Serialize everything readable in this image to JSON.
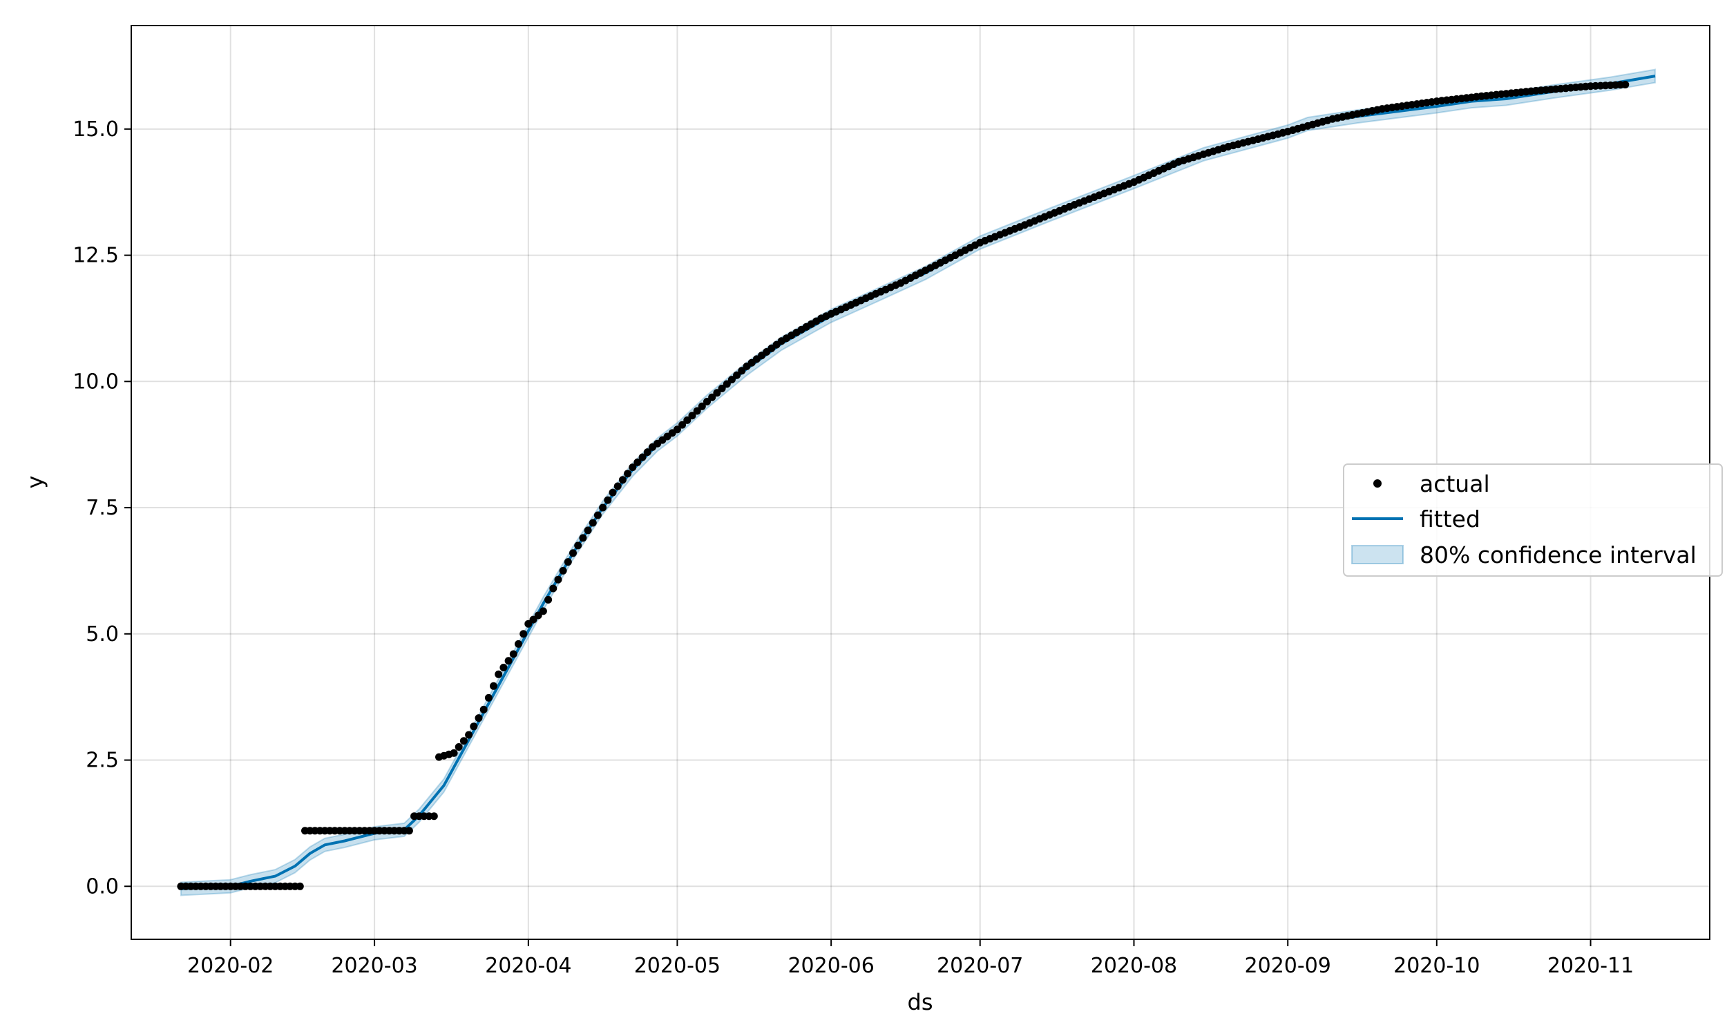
{
  "chart_data": {
    "type": "line",
    "xlabel": "ds",
    "ylabel": "y",
    "xlim": [
      "2020-01-12",
      "2020-11-25"
    ],
    "ylim": [
      -1.05,
      17.05
    ],
    "grid": true,
    "x_ticks": [
      "2020-02",
      "2020-03",
      "2020-04",
      "2020-05",
      "2020-06",
      "2020-07",
      "2020-08",
      "2020-09",
      "2020-10",
      "2020-11"
    ],
    "y_ticks": [
      "0.0",
      "2.5",
      "5.0",
      "7.5",
      "10.0",
      "12.5",
      "15.0"
    ],
    "legend": {
      "position": "center-right",
      "items": [
        "actual",
        "fitted",
        "80% confidence interval"
      ]
    },
    "colors": {
      "actual": "#000000",
      "fitted": "#0072B2",
      "band": "#0072B2"
    },
    "series": [
      {
        "name": "actual",
        "kind": "points",
        "points": [
          [
            "2020-01-22",
            0.0
          ],
          [
            "2020-02-15",
            0.0
          ],
          [
            "2020-02-16",
            1.1
          ],
          [
            "2020-03-08",
            1.1
          ],
          [
            "2020-03-09",
            1.39
          ],
          [
            "2020-03-13",
            1.39
          ],
          [
            "2020-03-14",
            2.56
          ],
          [
            "2020-03-17",
            2.64
          ],
          [
            "2020-03-20",
            3.0
          ],
          [
            "2020-03-23",
            3.5
          ],
          [
            "2020-03-26",
            4.2
          ],
          [
            "2020-03-29",
            4.6
          ],
          [
            "2020-04-01",
            5.2
          ],
          [
            "2020-04-04",
            5.45
          ],
          [
            "2020-04-06",
            5.9
          ],
          [
            "2020-04-10",
            6.6
          ],
          [
            "2020-04-14",
            7.2
          ],
          [
            "2020-04-18",
            7.8
          ],
          [
            "2020-04-22",
            8.3
          ],
          [
            "2020-04-26",
            8.7
          ],
          [
            "2020-05-01",
            9.05
          ],
          [
            "2020-05-07",
            9.6
          ],
          [
            "2020-05-15",
            10.3
          ],
          [
            "2020-05-22",
            10.8
          ],
          [
            "2020-05-30",
            11.25
          ],
          [
            "2020-06-08",
            11.65
          ],
          [
            "2020-06-15",
            11.95
          ],
          [
            "2020-06-22",
            12.3
          ],
          [
            "2020-07-01",
            12.75
          ],
          [
            "2020-07-10",
            13.1
          ],
          [
            "2020-07-20",
            13.5
          ],
          [
            "2020-08-01",
            13.95
          ],
          [
            "2020-08-10",
            14.35
          ],
          [
            "2020-08-20",
            14.65
          ],
          [
            "2020-09-01",
            14.95
          ],
          [
            "2020-09-10",
            15.2
          ],
          [
            "2020-09-20",
            15.4
          ],
          [
            "2020-10-01",
            15.55
          ],
          [
            "2020-10-10",
            15.65
          ],
          [
            "2020-10-20",
            15.75
          ],
          [
            "2020-11-01",
            15.85
          ],
          [
            "2020-11-08",
            15.88
          ]
        ]
      },
      {
        "name": "fitted",
        "kind": "line",
        "points": [
          [
            "2020-01-22",
            -0.05
          ],
          [
            "2020-02-01",
            0.0
          ],
          [
            "2020-02-05",
            0.1
          ],
          [
            "2020-02-10",
            0.2
          ],
          [
            "2020-02-14",
            0.4
          ],
          [
            "2020-02-17",
            0.65
          ],
          [
            "2020-02-20",
            0.82
          ],
          [
            "2020-02-24",
            0.9
          ],
          [
            "2020-03-01",
            1.05
          ],
          [
            "2020-03-07",
            1.12
          ],
          [
            "2020-03-10",
            1.4
          ],
          [
            "2020-03-15",
            2.0
          ],
          [
            "2020-03-20",
            2.9
          ],
          [
            "2020-03-25",
            3.8
          ],
          [
            "2020-03-30",
            4.7
          ],
          [
            "2020-04-04",
            5.6
          ],
          [
            "2020-04-10",
            6.6
          ],
          [
            "2020-04-16",
            7.5
          ],
          [
            "2020-04-22",
            8.25
          ],
          [
            "2020-04-27",
            8.75
          ],
          [
            "2020-05-01",
            9.05
          ],
          [
            "2020-05-07",
            9.6
          ],
          [
            "2020-05-15",
            10.25
          ],
          [
            "2020-05-22",
            10.75
          ],
          [
            "2020-06-01",
            11.3
          ],
          [
            "2020-06-10",
            11.7
          ],
          [
            "2020-06-20",
            12.15
          ],
          [
            "2020-07-01",
            12.75
          ],
          [
            "2020-07-15",
            13.3
          ],
          [
            "2020-08-01",
            13.95
          ],
          [
            "2020-08-15",
            14.5
          ],
          [
            "2020-09-01",
            14.95
          ],
          [
            "2020-09-05",
            15.1
          ],
          [
            "2020-09-15",
            15.25
          ],
          [
            "2020-10-01",
            15.45
          ],
          [
            "2020-10-08",
            15.55
          ],
          [
            "2020-10-15",
            15.6
          ],
          [
            "2020-10-25",
            15.75
          ],
          [
            "2020-11-05",
            15.9
          ],
          [
            "2020-11-14",
            16.05
          ]
        ]
      },
      {
        "name": "80% confidence interval",
        "kind": "band",
        "halfwidth": 0.13
      }
    ]
  }
}
